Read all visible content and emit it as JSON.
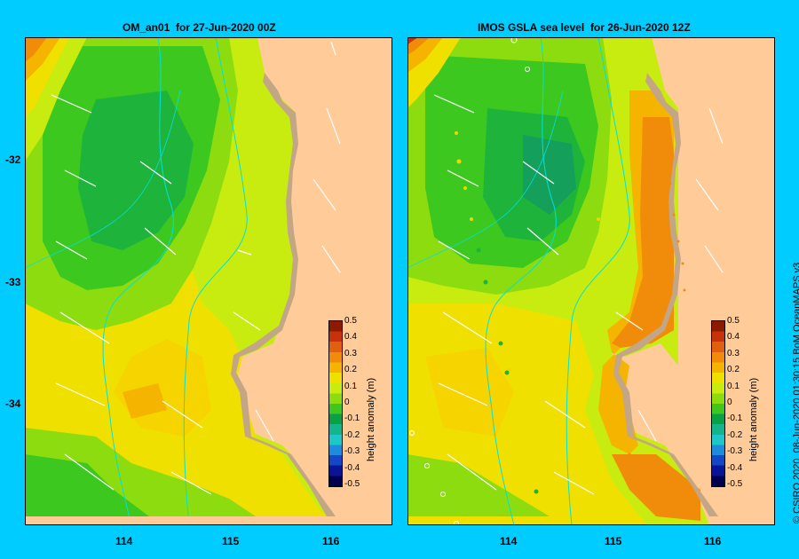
{
  "panels": [
    {
      "title": "OM_an01  for 27-Jun-2020 00Z"
    },
    {
      "title": "IMOS GSLA sea level  for 26-Jun-2020 12Z"
    }
  ],
  "y_ticks": [
    "-32",
    "-33",
    "-34"
  ],
  "x_ticks": [
    "114",
    "115",
    "116"
  ],
  "colorbar": {
    "title": "height anomaly (m)",
    "ticks": [
      "0.5",
      "0.4",
      "0.3",
      "0.2",
      "0.1",
      "0",
      "-0.1",
      "-0.2",
      "-0.3",
      "-0.4",
      "-0.5"
    ],
    "colors": [
      "#8b1a00",
      "#c8320a",
      "#e06010",
      "#f08c0a",
      "#f5b400",
      "#f0e000",
      "#c8ec10",
      "#8cdc10",
      "#3cc81e",
      "#0aa046",
      "#14b48c",
      "#1ec8c8",
      "#1e8cdc",
      "#1446c8",
      "#0a1496",
      "#000050"
    ]
  },
  "credit": "© CSIRO 2020  08-Jun-2020 01:30:15 BoM OceanMAPS v3",
  "colors": {
    "background": "#00ccff",
    "land": "#fecb99",
    "coast_band": "#c3a686",
    "bathymetry": "#00e0e0"
  }
}
